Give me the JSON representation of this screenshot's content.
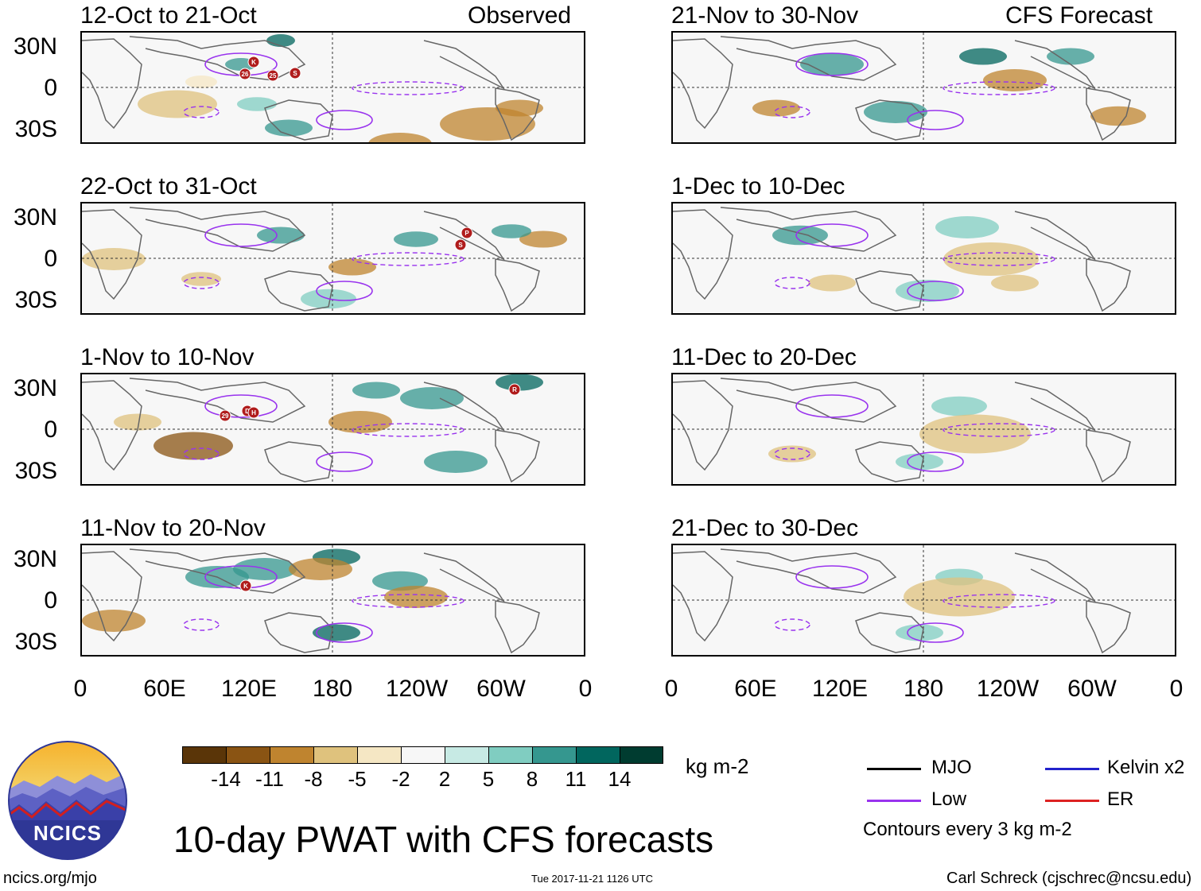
{
  "panels_left": [
    {
      "date": "12-Oct to 21-Oct",
      "tag": "Observed"
    },
    {
      "date": "22-Oct to 31-Oct",
      "tag": ""
    },
    {
      "date": "1-Nov to 10-Nov",
      "tag": ""
    },
    {
      "date": "11-Nov to 20-Nov",
      "tag": ""
    }
  ],
  "panels_right": [
    {
      "date": "21-Nov to 30-Nov",
      "tag": "CFS Forecast"
    },
    {
      "date": "1-Dec to 10-Dec",
      "tag": ""
    },
    {
      "date": "11-Dec to 20-Dec",
      "tag": ""
    },
    {
      "date": "21-Dec to 30-Dec",
      "tag": ""
    }
  ],
  "lat_labels": [
    "30N",
    "0",
    "30S"
  ],
  "lon_labels": [
    "0",
    "60E",
    "120E",
    "180",
    "120W",
    "60W",
    "0"
  ],
  "storm_labels": {
    "p1": [
      "K",
      "26",
      "25",
      "S"
    ],
    "p2": [
      "P",
      "S"
    ],
    "p3": [
      "29",
      "D",
      "H",
      "R"
    ],
    "p4": [
      "K"
    ]
  },
  "colorbar": {
    "colors": [
      "#5a3508",
      "#8a5413",
      "#bf842f",
      "#dfc27d",
      "#f5e7c4",
      "#f7f7f7",
      "#c7eae4",
      "#80cdc1",
      "#35978f",
      "#01665e",
      "#003c30"
    ],
    "ticks": [
      "-14",
      "-11",
      "-8",
      "-5",
      "-2",
      "2",
      "5",
      "8",
      "11",
      "14"
    ],
    "unit": "kg m-2"
  },
  "legend": {
    "mjo": "MJO",
    "kelvin": "Kelvin x2",
    "low": "Low",
    "er": "ER",
    "contours": "Contours every 3 kg m-2",
    "mjo_color": "#000000",
    "kelvin_color": "#2222cc",
    "low_color": "#9933ee",
    "er_color": "#dd2222"
  },
  "title": "10-day PWAT with CFS forecasts",
  "logo_text": "NCICS",
  "footer": {
    "url": "ncics.org/mjo",
    "timestamp": "Tue 2017-11-21 1126 UTC",
    "credit": "Carl Schreck (cjschrec@ncsu.edu)"
  }
}
